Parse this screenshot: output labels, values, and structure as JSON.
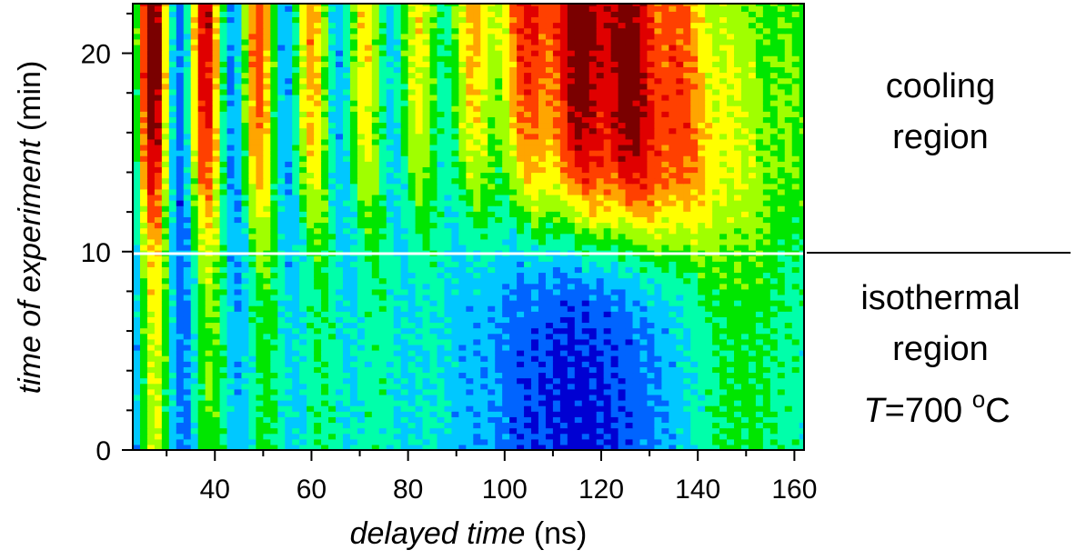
{
  "chart_data": {
    "type": "heatmap",
    "title": "",
    "xlabel": "delayed time",
    "xlabel_unit": "(ns)",
    "ylabel": "time of experiment",
    "ylabel_unit": "(min)",
    "xlim": [
      23,
      162
    ],
    "ylim": [
      0,
      22.5
    ],
    "x_ticks": [
      40,
      60,
      80,
      100,
      120,
      140,
      160
    ],
    "y_ticks": [
      0,
      10,
      20
    ],
    "divider_y": 9.9,
    "colormap": [
      "#00006e",
      "#0000d2",
      "#0064ff",
      "#00c8ff",
      "#00ffaa",
      "#00e600",
      "#a0ff00",
      "#ffff00",
      "#ffa500",
      "#ff4000",
      "#e00000",
      "#7a0000"
    ],
    "divider_color": "#ffffff",
    "annotations": {
      "cooling_line1": "cooling",
      "cooling_line2": "region",
      "iso_line1": "isothermal",
      "iso_line2": "region",
      "temp_var": "T",
      "temp_value": "=700 ",
      "temp_sup": "o",
      "temp_unit": "C"
    }
  }
}
